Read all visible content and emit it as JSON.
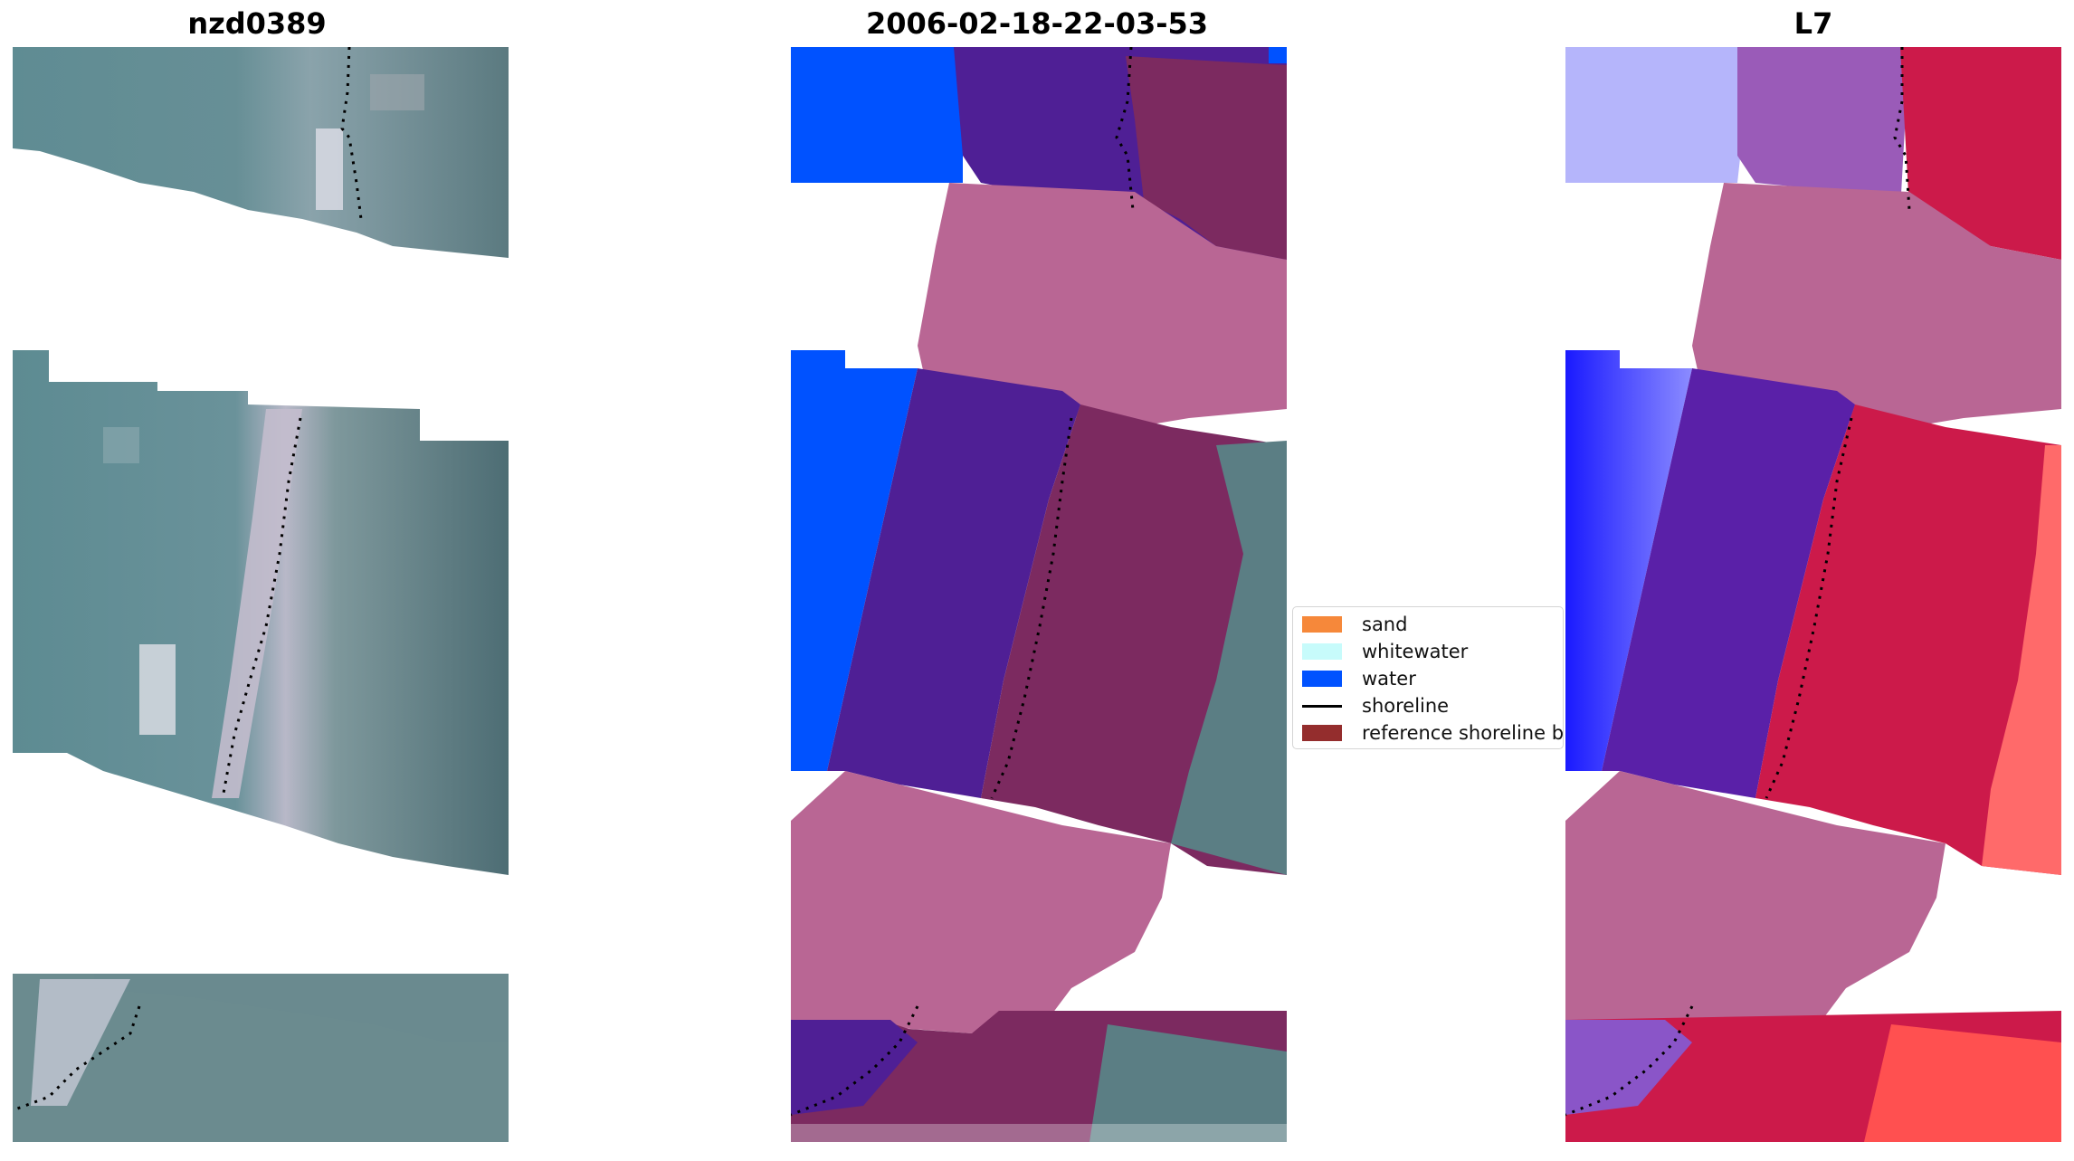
{
  "panels": [
    {
      "title": "nzd0389",
      "kind": "rgb-image"
    },
    {
      "title": "2006-02-18-22-03-53",
      "kind": "classified-image"
    },
    {
      "title": "L7",
      "kind": "index-image"
    }
  ],
  "legend": {
    "items": [
      {
        "label": "sand",
        "color": "#f6883a",
        "type": "patch"
      },
      {
        "label": "whitewater",
        "color": "#c7fbfb",
        "type": "patch"
      },
      {
        "label": "water",
        "color": "#0052ff",
        "type": "patch"
      },
      {
        "label": "shoreline",
        "color": "#000000",
        "type": "line"
      },
      {
        "label": "reference shoreline buffer",
        "color": "#942d2d",
        "type": "patch"
      }
    ]
  },
  "colors": {
    "satellite_water": "#5e8a91",
    "satellite_land": "#4f7079",
    "satellite_beach": "#c9c3d2",
    "class_water": "#0052ff",
    "class_water_dark": "#4f1f95",
    "class_buffer": "#7c2a60",
    "class_cloud": "#b96694",
    "index_blue": "#1a1aff",
    "index_purple": "#5a20a8",
    "index_red": "#cc1a4a",
    "index_pale_red": "#ff6a6a"
  }
}
